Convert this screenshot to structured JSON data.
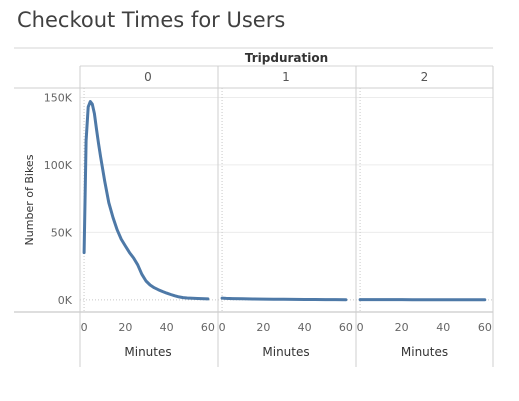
{
  "chart_data": {
    "type": "line",
    "title": "Checkout Times for Users",
    "column_header": "Tripduration",
    "ylabel": "Number of Bikes",
    "xlabel": "Minutes",
    "ylim": [
      -9000,
      157000
    ],
    "y_ticks": [
      0,
      50000,
      100000,
      150000
    ],
    "y_tick_labels": [
      "0K",
      "50K",
      "100K",
      "150K"
    ],
    "x_ticks": [
      0,
      20,
      40,
      60
    ],
    "x_tick_labels": [
      "0",
      "20",
      "40",
      "60"
    ],
    "xlim": [
      -1,
      62
    ],
    "line_color": "#4e79a7",
    "grid": true,
    "panels": [
      {
        "label": "0",
        "x": [
          0,
          1,
          2,
          3,
          4,
          5,
          6,
          7,
          8,
          10,
          12,
          14,
          16,
          18,
          20,
          22,
          24,
          26,
          28,
          30,
          32,
          34,
          36,
          38,
          40,
          42,
          44,
          46,
          48,
          50,
          55,
          60
        ],
        "y": [
          35000,
          118000,
          143000,
          147000,
          145000,
          138000,
          127000,
          116000,
          106000,
          88000,
          72000,
          61000,
          52000,
          45000,
          40000,
          35000,
          31000,
          26000,
          19000,
          14000,
          11000,
          9000,
          7500,
          6200,
          5000,
          4000,
          3000,
          2200,
          1700,
          1400,
          1000,
          700
        ]
      },
      {
        "label": "1",
        "x": [
          0,
          2,
          5,
          10,
          15,
          20,
          25,
          30,
          35,
          40,
          45,
          50,
          55,
          60
        ],
        "y": [
          1300,
          1100,
          900,
          750,
          650,
          550,
          450,
          380,
          320,
          270,
          230,
          200,
          170,
          150
        ]
      },
      {
        "label": "2",
        "x": [
          0,
          5,
          10,
          15,
          20,
          25,
          30,
          35,
          40,
          45,
          50,
          55,
          60
        ],
        "y": [
          200,
          190,
          180,
          170,
          160,
          150,
          140,
          130,
          120,
          110,
          100,
          95,
          90
        ]
      }
    ]
  }
}
